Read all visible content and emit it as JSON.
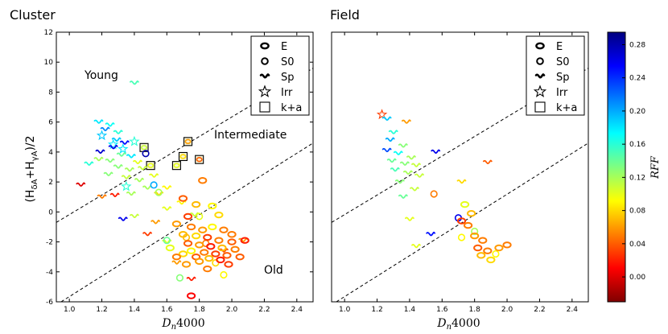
{
  "chart_data": [
    {
      "type": "scatter",
      "title": "Cluster",
      "xlabel": "D_n4000",
      "ylabel": "(H_δA+H_γA)/2",
      "xlim": [
        0.92,
        2.5
      ],
      "ylim": [
        -6,
        12
      ],
      "xticks": [
        "1.0",
        "1.2",
        "1.4",
        "1.6",
        "1.8",
        "2.0",
        "2.2",
        "2.4"
      ],
      "yticks": [
        "-6",
        "-4",
        "-2",
        "0",
        "2",
        "4",
        "6",
        "8",
        "10",
        "12"
      ],
      "region_labels": {
        "young": "Young",
        "intermediate": "Intermediate",
        "old": "Old"
      },
      "dividers": [
        {
          "name": "young-intermediate",
          "x": [
            0.92,
            2.5
          ],
          "y": [
            -0.7,
            9.6
          ]
        },
        {
          "name": "intermediate-old",
          "x": [
            0.92,
            2.5
          ],
          "y": [
            -6.2,
            4.6
          ]
        }
      ],
      "legend": [
        "E",
        "S0",
        "Sp",
        "Irr",
        "k+a"
      ],
      "points": [
        {
          "x": 1.2,
          "y": 5.1,
          "m": "Irr",
          "r": 0.19
        },
        {
          "x": 1.27,
          "y": 4.5,
          "m": "Irr",
          "r": 0.18
        },
        {
          "x": 1.33,
          "y": 4.2,
          "m": "Irr",
          "r": 0.18
        },
        {
          "x": 1.4,
          "y": 4.7,
          "m": "Irr",
          "r": 0.16
        },
        {
          "x": 1.35,
          "y": 1.7,
          "m": "Irr",
          "r": 0.16
        },
        {
          "x": 1.46,
          "y": 4.3,
          "m": "k+a",
          "r": 0.11
        },
        {
          "x": 1.5,
          "y": 3.1,
          "m": "k+a",
          "r": 0.1
        },
        {
          "x": 1.66,
          "y": 3.1,
          "m": "k+a",
          "r": 0.1
        },
        {
          "x": 1.7,
          "y": 3.7,
          "m": "k+a",
          "r": 0.08
        },
        {
          "x": 1.73,
          "y": 4.7,
          "m": "k+a",
          "r": 0.06
        },
        {
          "x": 1.8,
          "y": 3.5,
          "m": "k+a",
          "r": 0.04
        },
        {
          "x": 1.4,
          "y": 8.6,
          "m": "Sp",
          "r": 0.15
        },
        {
          "x": 1.18,
          "y": 6.0,
          "m": "Sp",
          "r": 0.18
        },
        {
          "x": 1.25,
          "y": 5.8,
          "m": "Sp",
          "r": 0.17
        },
        {
          "x": 1.3,
          "y": 5.3,
          "m": "Sp",
          "r": 0.16
        },
        {
          "x": 1.22,
          "y": 5.5,
          "m": "Sp",
          "r": 0.21
        },
        {
          "x": 1.29,
          "y": 4.8,
          "m": "Sp",
          "r": 0.19
        },
        {
          "x": 1.34,
          "y": 4.6,
          "m": "Sp",
          "r": 0.25
        },
        {
          "x": 1.19,
          "y": 4.0,
          "m": "Sp",
          "r": 0.27
        },
        {
          "x": 1.27,
          "y": 4.3,
          "m": "Sp",
          "r": 0.26
        },
        {
          "x": 1.38,
          "y": 3.7,
          "m": "Sp",
          "r": 0.18
        },
        {
          "x": 1.32,
          "y": 3.8,
          "m": "Sp",
          "r": 0.14
        },
        {
          "x": 1.25,
          "y": 3.4,
          "m": "Sp",
          "r": 0.13
        },
        {
          "x": 1.18,
          "y": 3.5,
          "m": "Sp",
          "r": 0.12
        },
        {
          "x": 1.3,
          "y": 3.0,
          "m": "Sp",
          "r": 0.13
        },
        {
          "x": 1.37,
          "y": 2.8,
          "m": "Sp",
          "r": 0.12
        },
        {
          "x": 1.42,
          "y": 3.3,
          "m": "Sp",
          "r": 0.1
        },
        {
          "x": 1.45,
          "y": 2.9,
          "m": "Sp",
          "r": 0.11
        },
        {
          "x": 1.12,
          "y": 3.2,
          "m": "Sp",
          "r": 0.16
        },
        {
          "x": 1.24,
          "y": 2.5,
          "m": "Sp",
          "r": 0.13
        },
        {
          "x": 1.35,
          "y": 2.3,
          "m": "Sp",
          "r": 0.11
        },
        {
          "x": 1.43,
          "y": 2.1,
          "m": "Sp",
          "r": 0.12
        },
        {
          "x": 1.52,
          "y": 2.4,
          "m": "Sp",
          "r": 0.1
        },
        {
          "x": 1.48,
          "y": 1.6,
          "m": "Sp",
          "r": 0.12
        },
        {
          "x": 1.28,
          "y": 1.1,
          "m": "Sp",
          "r": 0.02
        },
        {
          "x": 1.2,
          "y": 1.0,
          "m": "Sp",
          "r": 0.05
        },
        {
          "x": 1.07,
          "y": 1.8,
          "m": "Sp",
          "r": 0.0
        },
        {
          "x": 1.38,
          "y": 1.2,
          "m": "Sp",
          "r": 0.12
        },
        {
          "x": 1.55,
          "y": 1.2,
          "m": "Sp",
          "r": 0.08
        },
        {
          "x": 1.6,
          "y": 1.6,
          "m": "Sp",
          "r": 0.09
        },
        {
          "x": 1.33,
          "y": -0.5,
          "m": "Sp",
          "r": 0.26
        },
        {
          "x": 1.4,
          "y": -0.3,
          "m": "Sp",
          "r": 0.11
        },
        {
          "x": 1.53,
          "y": -0.7,
          "m": "Sp",
          "r": 0.06
        },
        {
          "x": 1.6,
          "y": 0.2,
          "m": "Sp",
          "r": 0.1
        },
        {
          "x": 1.69,
          "y": 0.6,
          "m": "Sp",
          "r": 0.09
        },
        {
          "x": 1.77,
          "y": -0.2,
          "m": "Sp",
          "r": 0.11
        },
        {
          "x": 1.48,
          "y": -1.5,
          "m": "Sp",
          "r": 0.03
        },
        {
          "x": 1.6,
          "y": -2.0,
          "m": "Sp",
          "r": 0.1
        },
        {
          "x": 1.75,
          "y": -4.5,
          "m": "Sp",
          "r": 0.02
        },
        {
          "x": 1.66,
          "y": -3.4,
          "m": "Sp",
          "r": 0.06
        },
        {
          "x": 2.07,
          "y": -1.9,
          "m": "Sp",
          "r": 0.06
        },
        {
          "x": 1.95,
          "y": -2.6,
          "m": "Sp",
          "r": 0.04
        },
        {
          "x": 1.47,
          "y": 3.9,
          "m": "S0",
          "r": 0.28
        },
        {
          "x": 1.52,
          "y": 1.8,
          "m": "S0",
          "r": 0.2
        },
        {
          "x": 1.55,
          "y": 1.3,
          "m": "S0",
          "r": 0.12
        },
        {
          "x": 1.6,
          "y": -1.9,
          "m": "S0",
          "r": 0.14
        },
        {
          "x": 1.8,
          "y": -0.3,
          "m": "S0",
          "r": 0.1
        },
        {
          "x": 1.72,
          "y": -1.7,
          "m": "S0",
          "r": 0.07
        },
        {
          "x": 1.84,
          "y": -2.1,
          "m": "S0",
          "r": 0.05
        },
        {
          "x": 1.9,
          "y": -3.4,
          "m": "S0",
          "r": 0.08
        },
        {
          "x": 1.95,
          "y": -4.2,
          "m": "S0",
          "r": 0.09
        },
        {
          "x": 1.68,
          "y": -4.4,
          "m": "S0",
          "r": 0.13
        },
        {
          "x": 1.75,
          "y": -5.6,
          "m": "E",
          "r": 0.01
        },
        {
          "x": 1.82,
          "y": 2.1,
          "m": "E",
          "r": 0.05
        },
        {
          "x": 1.7,
          "y": 0.9,
          "m": "E",
          "r": 0.04
        },
        {
          "x": 1.78,
          "y": 0.5,
          "m": "E",
          "r": 0.07
        },
        {
          "x": 1.88,
          "y": 0.4,
          "m": "E",
          "r": 0.09
        },
        {
          "x": 1.92,
          "y": -0.2,
          "m": "E",
          "r": 0.08
        },
        {
          "x": 1.73,
          "y": -0.3,
          "m": "E",
          "r": 0.03
        },
        {
          "x": 1.66,
          "y": -0.8,
          "m": "E",
          "r": 0.06
        },
        {
          "x": 1.75,
          "y": -1.0,
          "m": "E",
          "r": 0.05
        },
        {
          "x": 1.82,
          "y": -1.2,
          "m": "E",
          "r": 0.06
        },
        {
          "x": 1.88,
          "y": -1.0,
          "m": "E",
          "r": 0.09
        },
        {
          "x": 1.95,
          "y": -1.2,
          "m": "E",
          "r": 0.05
        },
        {
          "x": 2.08,
          "y": -1.9,
          "m": "E",
          "r": 0.02
        },
        {
          "x": 1.7,
          "y": -1.5,
          "m": "E",
          "r": 0.07
        },
        {
          "x": 1.78,
          "y": -1.6,
          "m": "E",
          "r": 0.08
        },
        {
          "x": 1.85,
          "y": -1.7,
          "m": "E",
          "r": 0.03
        },
        {
          "x": 1.92,
          "y": -1.9,
          "m": "E",
          "r": 0.05
        },
        {
          "x": 2.0,
          "y": -2.0,
          "m": "E",
          "r": 0.04
        },
        {
          "x": 1.73,
          "y": -2.1,
          "m": "E",
          "r": 0.04
        },
        {
          "x": 1.8,
          "y": -2.2,
          "m": "E",
          "r": 0.06
        },
        {
          "x": 1.87,
          "y": -2.3,
          "m": "E",
          "r": 0.02
        },
        {
          "x": 1.94,
          "y": -2.4,
          "m": "E",
          "r": 0.07
        },
        {
          "x": 2.02,
          "y": -2.5,
          "m": "E",
          "r": 0.05
        },
        {
          "x": 1.75,
          "y": -2.6,
          "m": "E",
          "r": 0.09
        },
        {
          "x": 1.83,
          "y": -2.7,
          "m": "E",
          "r": 0.05
        },
        {
          "x": 1.9,
          "y": -2.8,
          "m": "E",
          "r": 0.03
        },
        {
          "x": 1.97,
          "y": -2.9,
          "m": "E",
          "r": 0.04
        },
        {
          "x": 1.7,
          "y": -2.8,
          "m": "E",
          "r": 0.08
        },
        {
          "x": 1.78,
          "y": -3.0,
          "m": "E",
          "r": 0.04
        },
        {
          "x": 1.86,
          "y": -3.1,
          "m": "E",
          "r": 0.07
        },
        {
          "x": 1.93,
          "y": -3.2,
          "m": "E",
          "r": 0.02
        },
        {
          "x": 1.8,
          "y": -3.3,
          "m": "E",
          "r": 0.06
        },
        {
          "x": 1.66,
          "y": -3.0,
          "m": "E",
          "r": 0.05
        },
        {
          "x": 1.62,
          "y": -2.4,
          "m": "E",
          "r": 0.1
        },
        {
          "x": 1.98,
          "y": -3.5,
          "m": "E",
          "r": 0.03
        },
        {
          "x": 1.85,
          "y": -3.8,
          "m": "E",
          "r": 0.05
        },
        {
          "x": 2.05,
          "y": -3.0,
          "m": "E",
          "r": 0.04
        },
        {
          "x": 1.72,
          "y": -3.5,
          "m": "E",
          "r": 0.06
        },
        {
          "x": 2.0,
          "y": -1.5,
          "m": "E",
          "r": 0.05
        }
      ]
    },
    {
      "type": "scatter",
      "title": "Field",
      "xlabel": "D_n4000",
      "ylabel": "",
      "xlim": [
        0.92,
        2.5
      ],
      "ylim": [
        -6,
        12
      ],
      "xticks": [
        "1.0",
        "1.2",
        "1.4",
        "1.6",
        "1.8",
        "2.0",
        "2.2",
        "2.4"
      ],
      "yticks": [],
      "dividers": [
        {
          "name": "young-intermediate",
          "x": [
            0.92,
            2.5
          ],
          "y": [
            -0.7,
            9.6
          ]
        },
        {
          "name": "intermediate-old",
          "x": [
            0.92,
            2.5
          ],
          "y": [
            -6.2,
            4.6
          ]
        }
      ],
      "legend": [
        "E",
        "S0",
        "Sp",
        "Irr",
        "k+a"
      ],
      "points": [
        {
          "x": 1.23,
          "y": 6.5,
          "m": "Irr",
          "r": 0.03
        },
        {
          "x": 1.26,
          "y": 6.2,
          "m": "Sp",
          "r": 0.19
        },
        {
          "x": 1.3,
          "y": 5.3,
          "m": "Sp",
          "r": 0.16
        },
        {
          "x": 1.38,
          "y": 6.0,
          "m": "Sp",
          "r": 0.06
        },
        {
          "x": 1.28,
          "y": 4.8,
          "m": "Sp",
          "r": 0.2
        },
        {
          "x": 1.36,
          "y": 4.4,
          "m": "Sp",
          "r": 0.13
        },
        {
          "x": 1.26,
          "y": 4.1,
          "m": "Sp",
          "r": 0.23
        },
        {
          "x": 1.33,
          "y": 3.9,
          "m": "Sp",
          "r": 0.17
        },
        {
          "x": 1.41,
          "y": 3.6,
          "m": "Sp",
          "r": 0.12
        },
        {
          "x": 1.29,
          "y": 3.4,
          "m": "Sp",
          "r": 0.14
        },
        {
          "x": 1.37,
          "y": 3.2,
          "m": "Sp",
          "r": 0.13
        },
        {
          "x": 1.44,
          "y": 3.1,
          "m": "Sp",
          "r": 0.11
        },
        {
          "x": 1.31,
          "y": 2.8,
          "m": "Sp",
          "r": 0.15
        },
        {
          "x": 1.39,
          "y": 2.6,
          "m": "Sp",
          "r": 0.12
        },
        {
          "x": 1.46,
          "y": 2.4,
          "m": "Sp",
          "r": 0.11
        },
        {
          "x": 1.34,
          "y": 2.0,
          "m": "Sp",
          "r": 0.13
        },
        {
          "x": 1.43,
          "y": 1.5,
          "m": "Sp",
          "r": 0.11
        },
        {
          "x": 1.36,
          "y": 1.0,
          "m": "Sp",
          "r": 0.14
        },
        {
          "x": 1.56,
          "y": 4.0,
          "m": "Sp",
          "r": 0.26
        },
        {
          "x": 1.88,
          "y": 3.3,
          "m": "Sp",
          "r": 0.04
        },
        {
          "x": 1.72,
          "y": 2.0,
          "m": "Sp",
          "r": 0.08
        },
        {
          "x": 1.4,
          "y": -0.5,
          "m": "Sp",
          "r": 0.1
        },
        {
          "x": 1.53,
          "y": -1.5,
          "m": "Sp",
          "r": 0.25
        },
        {
          "x": 1.44,
          "y": -2.3,
          "m": "Sp",
          "r": 0.1
        },
        {
          "x": 1.55,
          "y": 1.2,
          "m": "S0",
          "r": 0.05
        },
        {
          "x": 1.7,
          "y": -0.4,
          "m": "S0",
          "r": 0.26
        },
        {
          "x": 1.8,
          "y": -1.3,
          "m": "S0",
          "r": 0.12
        },
        {
          "x": 1.72,
          "y": -1.7,
          "m": "S0",
          "r": 0.09
        },
        {
          "x": 1.93,
          "y": -2.8,
          "m": "S0",
          "r": 0.09
        },
        {
          "x": 1.74,
          "y": 0.5,
          "m": "E",
          "r": 0.1
        },
        {
          "x": 1.78,
          "y": -0.1,
          "m": "E",
          "r": 0.07
        },
        {
          "x": 1.72,
          "y": -0.6,
          "m": "E",
          "r": 0.03
        },
        {
          "x": 1.76,
          "y": -0.9,
          "m": "E",
          "r": 0.05
        },
        {
          "x": 1.8,
          "y": -1.6,
          "m": "E",
          "r": 0.06
        },
        {
          "x": 1.85,
          "y": -1.9,
          "m": "E",
          "r": 0.05
        },
        {
          "x": 1.82,
          "y": -2.4,
          "m": "E",
          "r": 0.04
        },
        {
          "x": 1.88,
          "y": -2.6,
          "m": "E",
          "r": 0.05
        },
        {
          "x": 1.95,
          "y": -2.4,
          "m": "E",
          "r": 0.06
        },
        {
          "x": 2.0,
          "y": -2.2,
          "m": "E",
          "r": 0.05
        },
        {
          "x": 1.84,
          "y": -2.9,
          "m": "E",
          "r": 0.07
        },
        {
          "x": 1.9,
          "y": -3.2,
          "m": "E",
          "r": 0.08
        }
      ]
    }
  ],
  "colorbar": {
    "label": "RFF",
    "ticks": [
      "0.00",
      "0.04",
      "0.08",
      "0.12",
      "0.16",
      "0.20",
      "0.24",
      "0.28"
    ],
    "range": [
      -0.03,
      0.295
    ]
  }
}
